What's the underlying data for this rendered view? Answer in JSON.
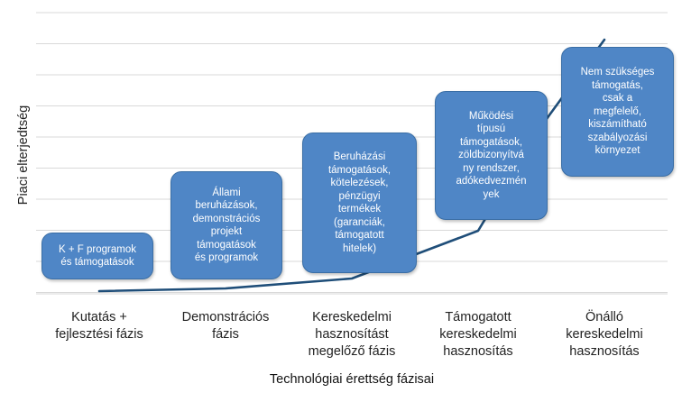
{
  "diagram": {
    "y_axis_label": "Piaci elterjedtség",
    "x_axis_label": "Technológiai érettség fázisai",
    "phases": [
      "Kutatás +\nfejlesztési fázis",
      "Demonstrációs\nfázis",
      "Kereskedelmi\nhasznosítást\nmegelőző fázis",
      "Támogatott\nkereskedelmi\nhasznosítás",
      "Önálló\nkereskedelmi\nhasznosítás"
    ],
    "boxes": [
      "K + F programok\nés támogatások",
      "Állami\nberuházások,\ndemonstrációs\nprojekt\ntámogatások\nés programok",
      "Beruházási\ntámogatások,\nkötelezések,\npénzügyi\ntermékek\n(garanciák,\ntámogatott\nhitelek)",
      "Működési\ntípusú\ntámogatások,\nzöldbizonyítvá\nny rendszer,\nadókedvezmén\nyek",
      "Nem szükséges\ntámogatás,\ncsak a\nmegfelelő,\nkiszámítható\nszabályozási\nkörnyezet"
    ],
    "colors": {
      "box_fill": "#4f86c6",
      "curve": "#1f4e79",
      "grid": "#d9d9d9"
    }
  }
}
